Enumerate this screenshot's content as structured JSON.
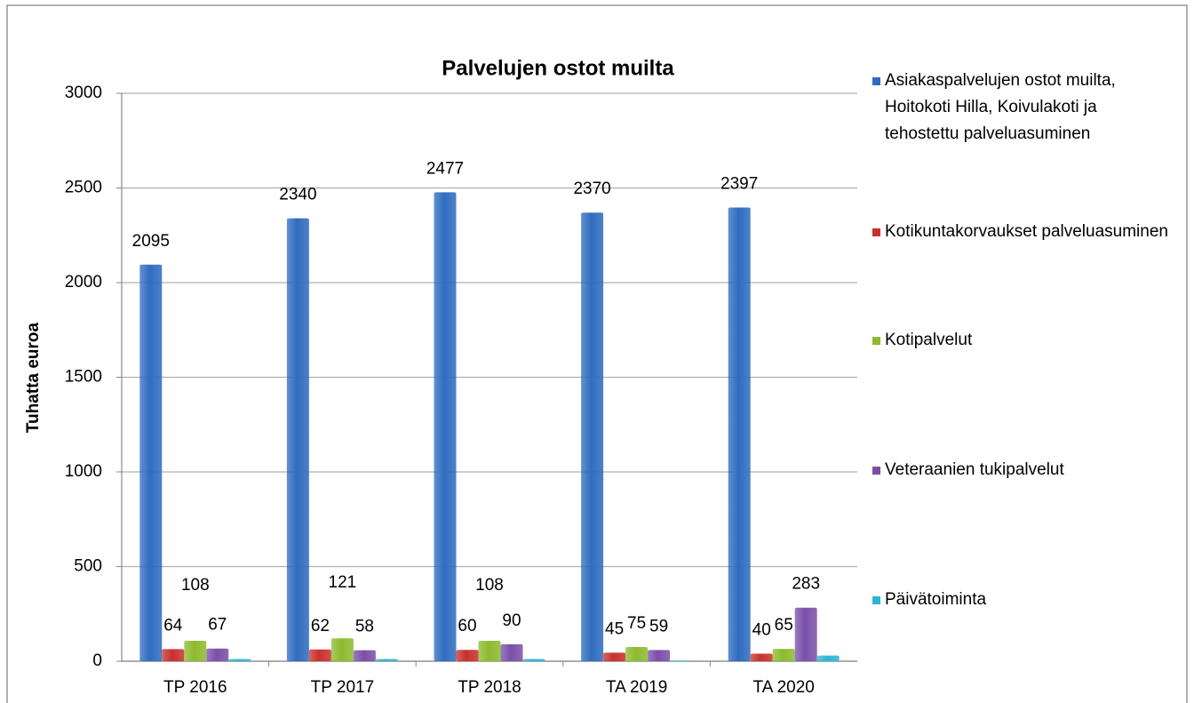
{
  "chart_data": {
    "type": "bar",
    "title": "Palvelujen ostot muilta",
    "y_label": "Tuhatta euroa",
    "categories": [
      "TP 2016",
      "TP 2017",
      "TP 2018",
      "TA 2019",
      "TA 2020"
    ],
    "series": [
      {
        "name": "Asiakaspalvelujen ostot muilta, Hoitokoti Hilla, Koivulakoti ja tehostettu palveluasuminen",
        "color": "#2f6cc0",
        "values": [
          2095,
          2340,
          2477,
          2370,
          2397
        ],
        "labels": true
      },
      {
        "name": "Kotikuntakorvaukset palveluasuminen",
        "color": "#c9302c",
        "values": [
          64,
          62,
          60,
          45,
          40
        ],
        "labels": true
      },
      {
        "name": "Kotipalvelut",
        "color": "#8dba2e",
        "values": [
          108,
          121,
          108,
          75,
          65
        ],
        "labels": true
      },
      {
        "name": "Veteraanien tukipalvelut",
        "color": "#7b4fa9",
        "values": [
          67,
          58,
          90,
          59,
          283
        ],
        "labels": true
      },
      {
        "name": "Päivätoiminta",
        "color": "#2fb5d2",
        "values": [
          12,
          12,
          12,
          3,
          30
        ],
        "labels": false
      }
    ],
    "ylim": [
      0,
      3000
    ],
    "yticks": [
      0,
      500,
      1000,
      1500,
      2000,
      2500,
      3000
    ],
    "grid": true,
    "legend": "right"
  }
}
